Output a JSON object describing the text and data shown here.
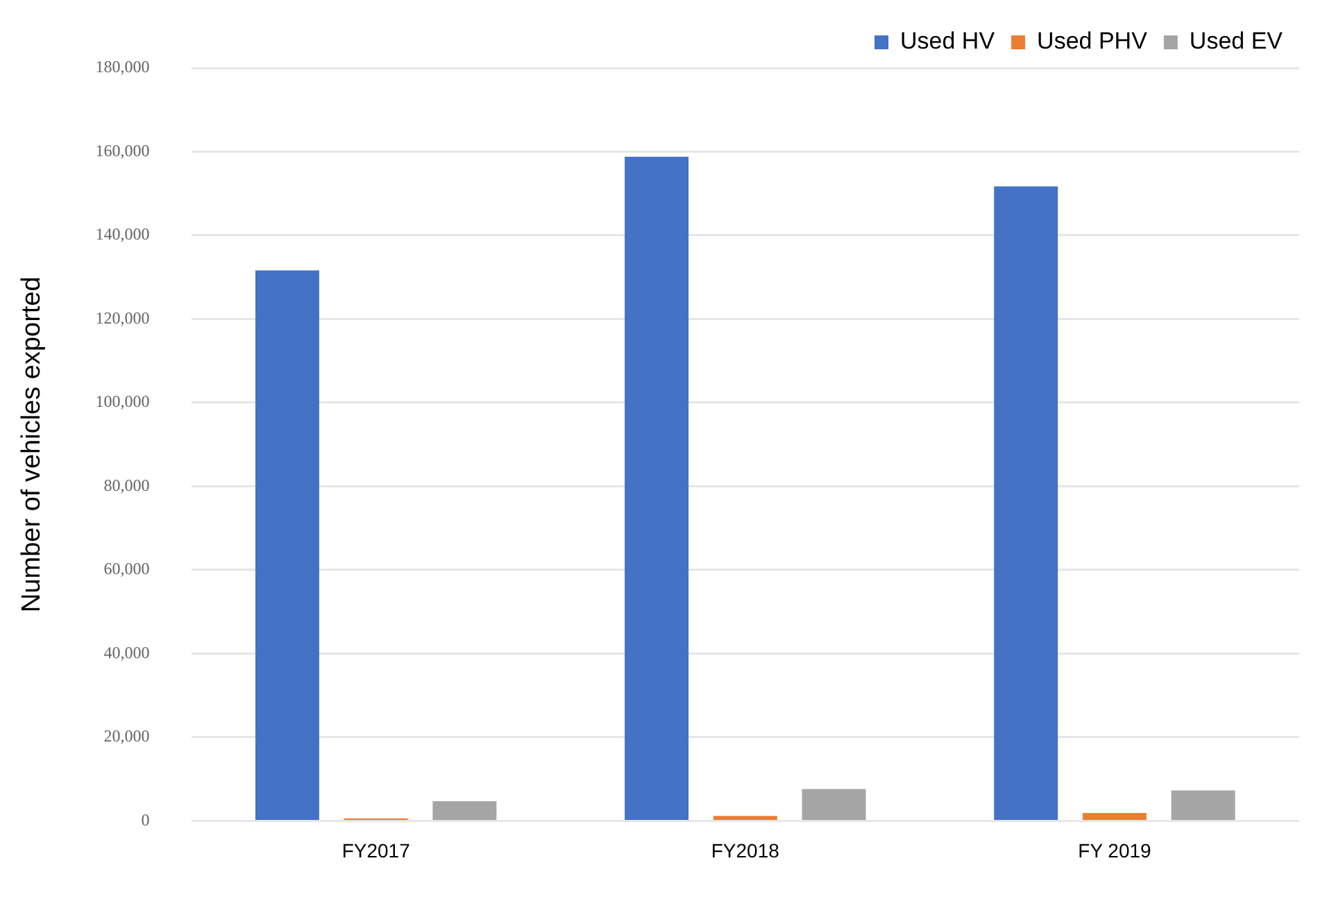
{
  "chart_data": {
    "type": "bar",
    "ylabel": "Number of vehicles exported",
    "categories": [
      "FY2017",
      "FY2018",
      "FY 2019"
    ],
    "series": [
      {
        "name": "Used HV",
        "color": "#4472c4",
        "values": [
          131600,
          158800,
          151700
        ]
      },
      {
        "name": "Used PHV",
        "color": "#ed7d31",
        "values": [
          600,
          1200,
          1900
        ]
      },
      {
        "name": "Used EV",
        "color": "#a5a5a5",
        "values": [
          4700,
          7600,
          7300
        ]
      }
    ],
    "ylim": [
      0,
      180000
    ],
    "yticks": [
      {
        "value": 0,
        "label": "0"
      },
      {
        "value": 20000,
        "label": "20,000"
      },
      {
        "value": 40000,
        "label": "40,000"
      },
      {
        "value": 60000,
        "label": "60,000"
      },
      {
        "value": 80000,
        "label": "80,000"
      },
      {
        "value": 100000,
        "label": "100,000"
      },
      {
        "value": 120000,
        "label": "120,000"
      },
      {
        "value": 140000,
        "label": "140,000"
      },
      {
        "value": 160000,
        "label": "160,000"
      },
      {
        "value": 180000,
        "label": "180,000"
      }
    ],
    "grid": "y",
    "legend": "top right"
  }
}
